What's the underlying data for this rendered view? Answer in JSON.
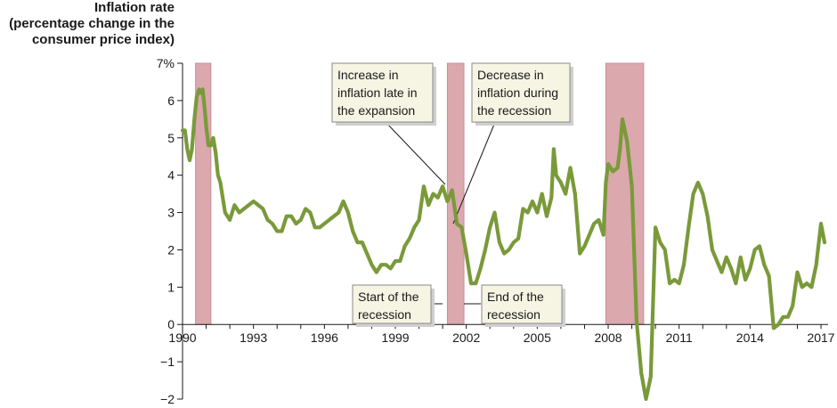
{
  "chart_data": {
    "type": "line",
    "ylabel_lines": [
      "Inflation rate",
      "(percentage change in the",
      "consumer price index)"
    ],
    "xlim": [
      1990,
      2017.3
    ],
    "ylim": [
      -2,
      7
    ],
    "x_ticks": [
      1990,
      1993,
      1996,
      1999,
      2002,
      2005,
      2008,
      2011,
      2014,
      2017
    ],
    "x_tick_labels": [
      "1990",
      "1993",
      "1996",
      "1999",
      "2002",
      "2005",
      "2008",
      "2011",
      "2014",
      "2017"
    ],
    "y_ticks": [
      -2,
      -1,
      0,
      1,
      2,
      3,
      4,
      5,
      6,
      7
    ],
    "y_tick_labels": [
      "−2",
      "−1",
      "0",
      "1",
      "2",
      "3",
      "4",
      "5",
      "6",
      "7%"
    ],
    "recessions": [
      [
        1990.55,
        1991.2
      ],
      [
        2001.2,
        2001.9
      ],
      [
        2007.9,
        2009.5
      ]
    ],
    "line_color": "#7a9a3a",
    "recession_color": "#dba8ae",
    "series": [
      {
        "x": [
          1990.0,
          1990.1,
          1990.2,
          1990.3,
          1990.4,
          1990.5,
          1990.6,
          1990.7,
          1990.75,
          1990.85,
          1990.95,
          1991.0,
          1991.1,
          1991.2,
          1991.3,
          1991.4,
          1991.5,
          1991.6,
          1991.7,
          1991.8,
          1991.9,
          1992.0,
          1992.2,
          1992.4,
          1992.6,
          1992.8,
          1993.0,
          1993.2,
          1993.4,
          1993.6,
          1993.8,
          1994.0,
          1994.2,
          1994.4,
          1994.6,
          1994.8,
          1995.0,
          1995.2,
          1995.4,
          1995.6,
          1995.8,
          1996.0,
          1996.2,
          1996.4,
          1996.6,
          1996.8,
          1997.0,
          1997.2,
          1997.4,
          1997.6,
          1997.8,
          1998.0,
          1998.2,
          1998.4,
          1998.6,
          1998.8,
          1999.0,
          1999.2,
          1999.4,
          1999.6,
          1999.8,
          2000.0,
          2000.2,
          2000.4,
          2000.6,
          2000.8,
          2001.0,
          2001.2,
          2001.4,
          2001.6,
          2001.8,
          2002.0,
          2002.2,
          2002.4,
          2002.6,
          2002.8,
          2003.0,
          2003.2,
          2003.4,
          2003.6,
          2003.8,
          2004.0,
          2004.2,
          2004.4,
          2004.6,
          2004.8,
          2005.0,
          2005.2,
          2005.4,
          2005.6,
          2005.7,
          2005.8,
          2006.0,
          2006.2,
          2006.4,
          2006.6,
          2006.8,
          2007.0,
          2007.2,
          2007.4,
          2007.6,
          2007.8,
          2007.9,
          2008.0,
          2008.2,
          2008.4,
          2008.5,
          2008.6,
          2008.8,
          2009.0,
          2009.2,
          2009.4,
          2009.6,
          2009.8,
          2010.0,
          2010.2,
          2010.4,
          2010.6,
          2010.8,
          2011.0,
          2011.2,
          2011.4,
          2011.6,
          2011.8,
          2012.0,
          2012.2,
          2012.4,
          2012.6,
          2012.8,
          2013.0,
          2013.2,
          2013.4,
          2013.6,
          2013.8,
          2014.0,
          2014.2,
          2014.4,
          2014.6,
          2014.8,
          2015.0,
          2015.2,
          2015.4,
          2015.6,
          2015.8,
          2016.0,
          2016.2,
          2016.4,
          2016.6,
          2016.8,
          2017.0,
          2017.15
        ],
        "y": [
          5.2,
          5.2,
          4.7,
          4.4,
          4.7,
          5.5,
          6.1,
          6.3,
          6.2,
          6.3,
          5.7,
          5.3,
          4.8,
          4.8,
          5.0,
          4.6,
          4.0,
          3.8,
          3.4,
          3.0,
          2.9,
          2.8,
          3.2,
          3.0,
          3.1,
          3.2,
          3.3,
          3.2,
          3.1,
          2.8,
          2.7,
          2.5,
          2.5,
          2.9,
          2.9,
          2.7,
          2.8,
          3.1,
          3.0,
          2.6,
          2.6,
          2.7,
          2.8,
          2.9,
          3.0,
          3.3,
          3.0,
          2.5,
          2.2,
          2.2,
          1.9,
          1.6,
          1.4,
          1.6,
          1.6,
          1.5,
          1.7,
          1.7,
          2.1,
          2.3,
          2.6,
          2.8,
          3.7,
          3.2,
          3.5,
          3.4,
          3.7,
          3.3,
          3.6,
          2.7,
          2.6,
          1.9,
          1.1,
          1.1,
          1.5,
          2.0,
          2.6,
          3.0,
          2.2,
          1.9,
          2.0,
          2.2,
          2.3,
          3.1,
          3.0,
          3.3,
          3.0,
          3.5,
          2.9,
          3.4,
          4.7,
          4.0,
          3.8,
          3.5,
          4.2,
          3.5,
          1.9,
          2.1,
          2.4,
          2.7,
          2.8,
          2.4,
          3.8,
          4.3,
          4.1,
          4.2,
          4.7,
          5.5,
          4.9,
          3.7,
          0.1,
          -1.3,
          -2.0,
          -1.4,
          2.6,
          2.2,
          2.0,
          1.1,
          1.2,
          1.1,
          1.6,
          2.6,
          3.5,
          3.8,
          3.5,
          2.9,
          2.0,
          1.7,
          1.4,
          1.8,
          1.5,
          1.1,
          1.8,
          1.2,
          1.5,
          2.0,
          2.1,
          1.6,
          1.3,
          -0.1,
          0.0,
          0.2,
          0.2,
          0.5,
          1.4,
          1.0,
          1.1,
          1.0,
          1.6,
          2.7,
          2.2
        ]
      }
    ],
    "annotations": [
      {
        "lines": [
          "Increase in",
          "inflation late in",
          "the expansion"
        ]
      },
      {
        "lines": [
          "Decrease in",
          "inflation during",
          "the recession"
        ]
      },
      {
        "lines": [
          "Start of the",
          "recession"
        ]
      },
      {
        "lines": [
          "End of the",
          "recession"
        ]
      }
    ]
  }
}
